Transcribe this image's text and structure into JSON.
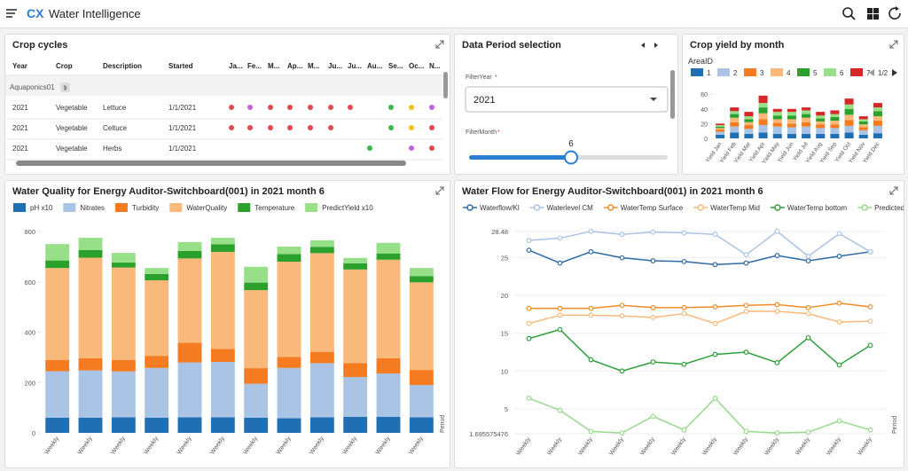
{
  "header": {
    "logo": "CX",
    "title": "Water Intelligence"
  },
  "crop_cycles": {
    "title": "Crop cycles",
    "columns": [
      "Year",
      "Crop",
      "Description",
      "Started",
      "Ja...",
      "Fe...",
      "M...",
      "Ap...",
      "M...",
      "Ju...",
      "Ju...",
      "Au...",
      "Se...",
      "Oc...",
      "N..."
    ],
    "group": {
      "name": "Aquaponics01",
      "count": 9
    },
    "rows": [
      {
        "cells": [
          "2021",
          "Vegetable",
          "Lettuce",
          "1/1/2021"
        ],
        "months": [
          "#e5484d",
          "#c061e0",
          "#e5484d",
          "#e5484d",
          "#e5484d",
          "#e5484d",
          "#e5484d",
          null,
          "#3cb94a",
          "#f2c11c",
          "#c061e0"
        ]
      },
      {
        "cells": [
          "2021",
          "Vegetable",
          "Celtuce",
          "1/1/2021"
        ],
        "months": [
          "#e5484d",
          "#e5484d",
          "#e5484d",
          "#e5484d",
          "#e5484d",
          "#e5484d",
          null,
          null,
          "#3cb94a",
          "#f2c11c",
          "#e5484d"
        ]
      },
      {
        "cells": [
          "2021",
          "Vegetable",
          "Herbs",
          "1/1/2021"
        ],
        "months": [
          null,
          null,
          null,
          null,
          null,
          null,
          null,
          "#3cb94a",
          null,
          "#c061e0",
          "#e5484d"
        ]
      }
    ]
  },
  "data_period": {
    "title": "Data Period selection",
    "year_label": "FilterYear",
    "month_label": "FilterMonth",
    "required_mark": "*",
    "year": "2021",
    "month": 6
  },
  "chart_data": [
    {
      "type": "bar",
      "stacked": true,
      "title": "Crop yield by month",
      "legend_title": "AreaID",
      "legend_page": "1/2",
      "categories": [
        "Yield Jan",
        "Yield Feb",
        "Yield Mar",
        "Yield Apr",
        "Yield May",
        "Yield Jun",
        "Yield Jul",
        "Yield Aug",
        "Yield Sep",
        "Yield Oct",
        "Yield Nov",
        "Yield Dec"
      ],
      "ylim": [
        0,
        65
      ],
      "yticks": [
        0,
        20,
        40,
        60
      ],
      "series": [
        {
          "name": "1",
          "color": "#1f6fb2",
          "values": [
            5,
            8,
            6,
            8,
            6,
            6,
            6,
            6,
            6,
            8,
            5,
            7
          ]
        },
        {
          "name": "2",
          "color": "#a9c4e4",
          "values": [
            4,
            8,
            7,
            10,
            10,
            9,
            10,
            8,
            8,
            9,
            6,
            10
          ]
        },
        {
          "name": "3",
          "color": "#f47b20",
          "values": [
            3,
            6,
            5,
            8,
            5,
            5,
            6,
            5,
            5,
            8,
            4,
            7
          ]
        },
        {
          "name": "4",
          "color": "#f9b97a",
          "values": [
            2,
            6,
            4,
            8,
            5,
            6,
            6,
            4,
            5,
            7,
            4,
            6
          ]
        },
        {
          "name": "5",
          "color": "#2ca02c",
          "values": [
            2,
            5,
            4,
            8,
            5,
            5,
            5,
            4,
            5,
            8,
            4,
            7
          ]
        },
        {
          "name": "6",
          "color": "#98df8a",
          "values": [
            2,
            4,
            4,
            6,
            5,
            5,
            5,
            4,
            4,
            6,
            3,
            5
          ]
        },
        {
          "name": "7",
          "color": "#d62728",
          "values": [
            2,
            5,
            6,
            10,
            4,
            4,
            4,
            5,
            5,
            8,
            4,
            6
          ]
        }
      ]
    },
    {
      "type": "bar",
      "stacked": true,
      "title": "Water Quality for Energy Auditor-Switchboard(001) in 2021 month 6",
      "x_label": "Period",
      "categories": [
        "Weekly",
        "Weekly",
        "Weekly",
        "Weekly",
        "Weekly",
        "Weekly",
        "Weekly",
        "Weekly",
        "Weekly",
        "Weekly",
        "Weekly",
        "Weekly"
      ],
      "ylim": [
        0,
        800
      ],
      "yticks": [
        0,
        200,
        400,
        600,
        800
      ],
      "series": [
        {
          "name": "pH x10",
          "color": "#1f6fb2",
          "values": [
            60,
            60,
            62,
            60,
            62,
            62,
            60,
            58,
            62,
            64,
            64,
            62
          ]
        },
        {
          "name": "Nitrates",
          "color": "#a9c4e4",
          "values": [
            185,
            188,
            182,
            198,
            218,
            220,
            135,
            200,
            215,
            158,
            172,
            128
          ]
        },
        {
          "name": "Turbidity",
          "color": "#f47b20",
          "values": [
            45,
            48,
            45,
            48,
            78,
            52,
            62,
            44,
            45,
            55,
            60,
            60
          ]
        },
        {
          "name": "WaterQuality",
          "color": "#f9b97a",
          "values": [
            365,
            400,
            368,
            300,
            335,
            385,
            310,
            378,
            392,
            372,
            392,
            348
          ]
        },
        {
          "name": "Temperature",
          "color": "#2ca02c",
          "values": [
            30,
            30,
            20,
            25,
            30,
            30,
            30,
            30,
            25,
            25,
            25,
            25
          ]
        },
        {
          "name": "PredictYield x10",
          "color": "#98df8a",
          "values": [
            65,
            49,
            38,
            24,
            35,
            26,
            63,
            30,
            26,
            21,
            42,
            32
          ]
        }
      ]
    },
    {
      "type": "line",
      "title": "Water Flow for Energy Auditor-Switchboard(001) in 2021 month 6",
      "x_label": "Period",
      "grid": true,
      "categories": [
        "Weekly",
        "Weekly",
        "Weekly",
        "Weekly",
        "Weekly",
        "Weekly",
        "Weekly",
        "Weekly",
        "Weekly",
        "Weekly",
        "Weekly",
        "Weekly"
      ],
      "ylim": [
        1.695575476,
        28.48
      ],
      "yticks": [
        1.695575476,
        5,
        10,
        15,
        20,
        25,
        28.48
      ],
      "series": [
        {
          "name": "Waterflow/Kl",
          "color": "#2e6aa6",
          "values": [
            26,
            24.3,
            25.8,
            25,
            24.6,
            24.5,
            24.1,
            24.3,
            25.3,
            24.6,
            25.2,
            25.8
          ]
        },
        {
          "name": "Waterlevel CM",
          "color": "#a9c4e4",
          "values": [
            27.3,
            27.6,
            28.5,
            28.1,
            28.4,
            28.3,
            28.1,
            25.4,
            28.5,
            25.2,
            28.2,
            25.8
          ]
        },
        {
          "name": "WaterTemp Surface",
          "color": "#f28c28",
          "values": [
            18.3,
            18.3,
            18.3,
            18.7,
            18.4,
            18.4,
            18.5,
            18.7,
            18.8,
            18.4,
            19,
            18.5
          ]
        },
        {
          "name": "WaterTemp Mid",
          "color": "#f9b97a",
          "values": [
            16.3,
            17.4,
            17.4,
            17.3,
            17.1,
            17.6,
            16.3,
            17.9,
            17.9,
            17.6,
            16.5,
            16.6
          ]
        },
        {
          "name": "WaterTemp bottom",
          "color": "#2e9e3a",
          "values": [
            14.3,
            15.5,
            11.5,
            10,
            11.2,
            10.9,
            12.2,
            12.5,
            11.1,
            14.4,
            10.8,
            13.4
          ]
        },
        {
          "name": "Predicted yield",
          "color": "#98d98e",
          "values": [
            6.4,
            4.8,
            2,
            1.8,
            4,
            2.2,
            6.4,
            2,
            1.8,
            1.9,
            3.4,
            2.2
          ]
        }
      ]
    }
  ]
}
